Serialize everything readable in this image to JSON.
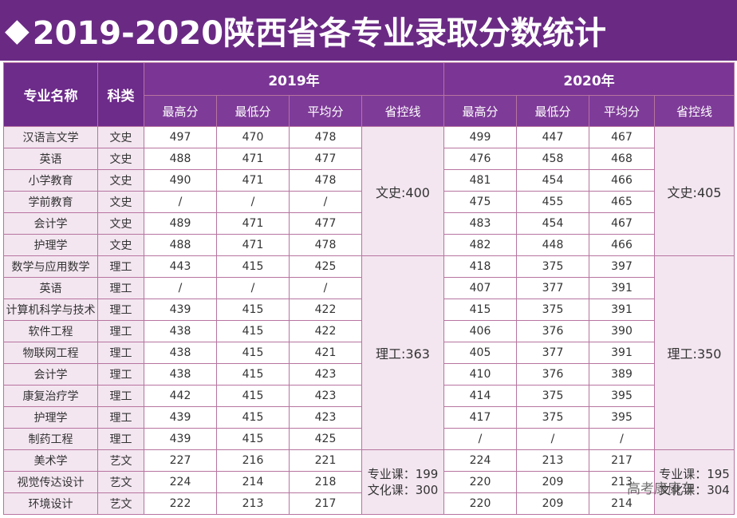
{
  "title": "2019-2020陕西省各专业录取分数统计",
  "header": {
    "major": "专业名称",
    "category": "科类",
    "year1": "2019年",
    "year2": "2020年",
    "cols": [
      "最高分",
      "最低分",
      "平均分",
      "省控线"
    ]
  },
  "rows": [
    {
      "name": "汉语言文学",
      "cat": "文史",
      "y2019": [
        "497",
        "470",
        "478"
      ],
      "y2020": [
        "499",
        "447",
        "467"
      ]
    },
    {
      "name": "英语",
      "cat": "文史",
      "y2019": [
        "488",
        "471",
        "477"
      ],
      "y2020": [
        "476",
        "458",
        "468"
      ]
    },
    {
      "name": "小学教育",
      "cat": "文史",
      "y2019": [
        "490",
        "471",
        "478"
      ],
      "y2020": [
        "481",
        "454",
        "466"
      ]
    },
    {
      "name": "学前教育",
      "cat": "文史",
      "y2019": [
        "/",
        "/",
        "/"
      ],
      "y2020": [
        "475",
        "455",
        "465"
      ]
    },
    {
      "name": "会计学",
      "cat": "文史",
      "y2019": [
        "489",
        "471",
        "477"
      ],
      "y2020": [
        "483",
        "454",
        "467"
      ]
    },
    {
      "name": "护理学",
      "cat": "文史",
      "y2019": [
        "488",
        "471",
        "478"
      ],
      "y2020": [
        "482",
        "448",
        "466"
      ]
    },
    {
      "name": "数学与应用数学",
      "cat": "理工",
      "y2019": [
        "443",
        "415",
        "425"
      ],
      "y2020": [
        "418",
        "375",
        "397"
      ]
    },
    {
      "name": "英语",
      "cat": "理工",
      "y2019": [
        "/",
        "/",
        "/"
      ],
      "y2020": [
        "407",
        "377",
        "391"
      ]
    },
    {
      "name": "计算机科学与技术",
      "cat": "理工",
      "y2019": [
        "439",
        "415",
        "422"
      ],
      "y2020": [
        "415",
        "375",
        "391"
      ]
    },
    {
      "name": "软件工程",
      "cat": "理工",
      "y2019": [
        "438",
        "415",
        "422"
      ],
      "y2020": [
        "406",
        "376",
        "390"
      ]
    },
    {
      "name": "物联网工程",
      "cat": "理工",
      "y2019": [
        "438",
        "415",
        "421"
      ],
      "y2020": [
        "405",
        "377",
        "391"
      ]
    },
    {
      "name": "会计学",
      "cat": "理工",
      "y2019": [
        "438",
        "415",
        "423"
      ],
      "y2020": [
        "410",
        "376",
        "389"
      ]
    },
    {
      "name": "康复治疗学",
      "cat": "理工",
      "y2019": [
        "442",
        "415",
        "423"
      ],
      "y2020": [
        "414",
        "375",
        "395"
      ]
    },
    {
      "name": "护理学",
      "cat": "理工",
      "y2019": [
        "439",
        "415",
        "423"
      ],
      "y2020": [
        "417",
        "375",
        "395"
      ]
    },
    {
      "name": "制药工程",
      "cat": "理工",
      "y2019": [
        "439",
        "415",
        "425"
      ],
      "y2020": [
        "/",
        "/",
        "/"
      ]
    },
    {
      "name": "美术学",
      "cat": "艺文",
      "y2019": [
        "227",
        "216",
        "221"
      ],
      "y2020": [
        "224",
        "213",
        "217"
      ]
    },
    {
      "name": "视觉传达设计",
      "cat": "艺文",
      "y2019": [
        "224",
        "214",
        "218"
      ],
      "y2020": [
        "220",
        "209",
        "213"
      ]
    },
    {
      "name": "环境设计",
      "cat": "艺文",
      "y2019": [
        "222",
        "213",
        "217"
      ],
      "y2020": [
        "220",
        "209",
        "214"
      ]
    }
  ],
  "controls": {
    "y2019": {
      "wenshi": "文史:400",
      "ligong": "理工:363",
      "yiwen_line1": "专业课：199",
      "yiwen_line2": "文化课：300"
    },
    "y2020": {
      "wenshi": "文史:405",
      "ligong": "理工:350",
      "yiwen_line1": "专业课：195",
      "yiwen_line2": "文化课：304"
    }
  },
  "watermark": "高考康康车",
  "colors": {
    "banner": "#6a2a84",
    "header": "#7a3595",
    "row_bg": "#f3e6f0",
    "border": "#b774a0"
  }
}
